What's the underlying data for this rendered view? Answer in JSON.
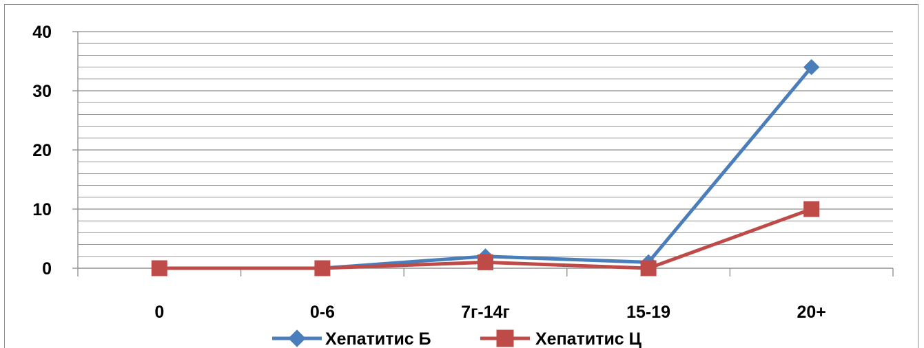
{
  "chart_data": {
    "type": "line",
    "title": "",
    "xlabel": "",
    "ylabel": "",
    "categories": [
      "0",
      "0-6",
      "7г-14г",
      "15-19",
      "20+"
    ],
    "ylim": [
      0,
      40
    ],
    "y_major_ticks": [
      0,
      10,
      20,
      30,
      40
    ],
    "y_minor_step": 2,
    "grid": true,
    "legend_position": "bottom",
    "series": [
      {
        "name": "Хепатитис Б",
        "values": [
          0,
          0,
          2,
          1,
          34
        ],
        "color": "#4a7ebb",
        "marker": "diamond"
      },
      {
        "name": "Хепатитис Ц",
        "values": [
          0,
          0,
          1,
          0,
          10
        ],
        "color": "#be4b48",
        "marker": "square"
      }
    ]
  }
}
